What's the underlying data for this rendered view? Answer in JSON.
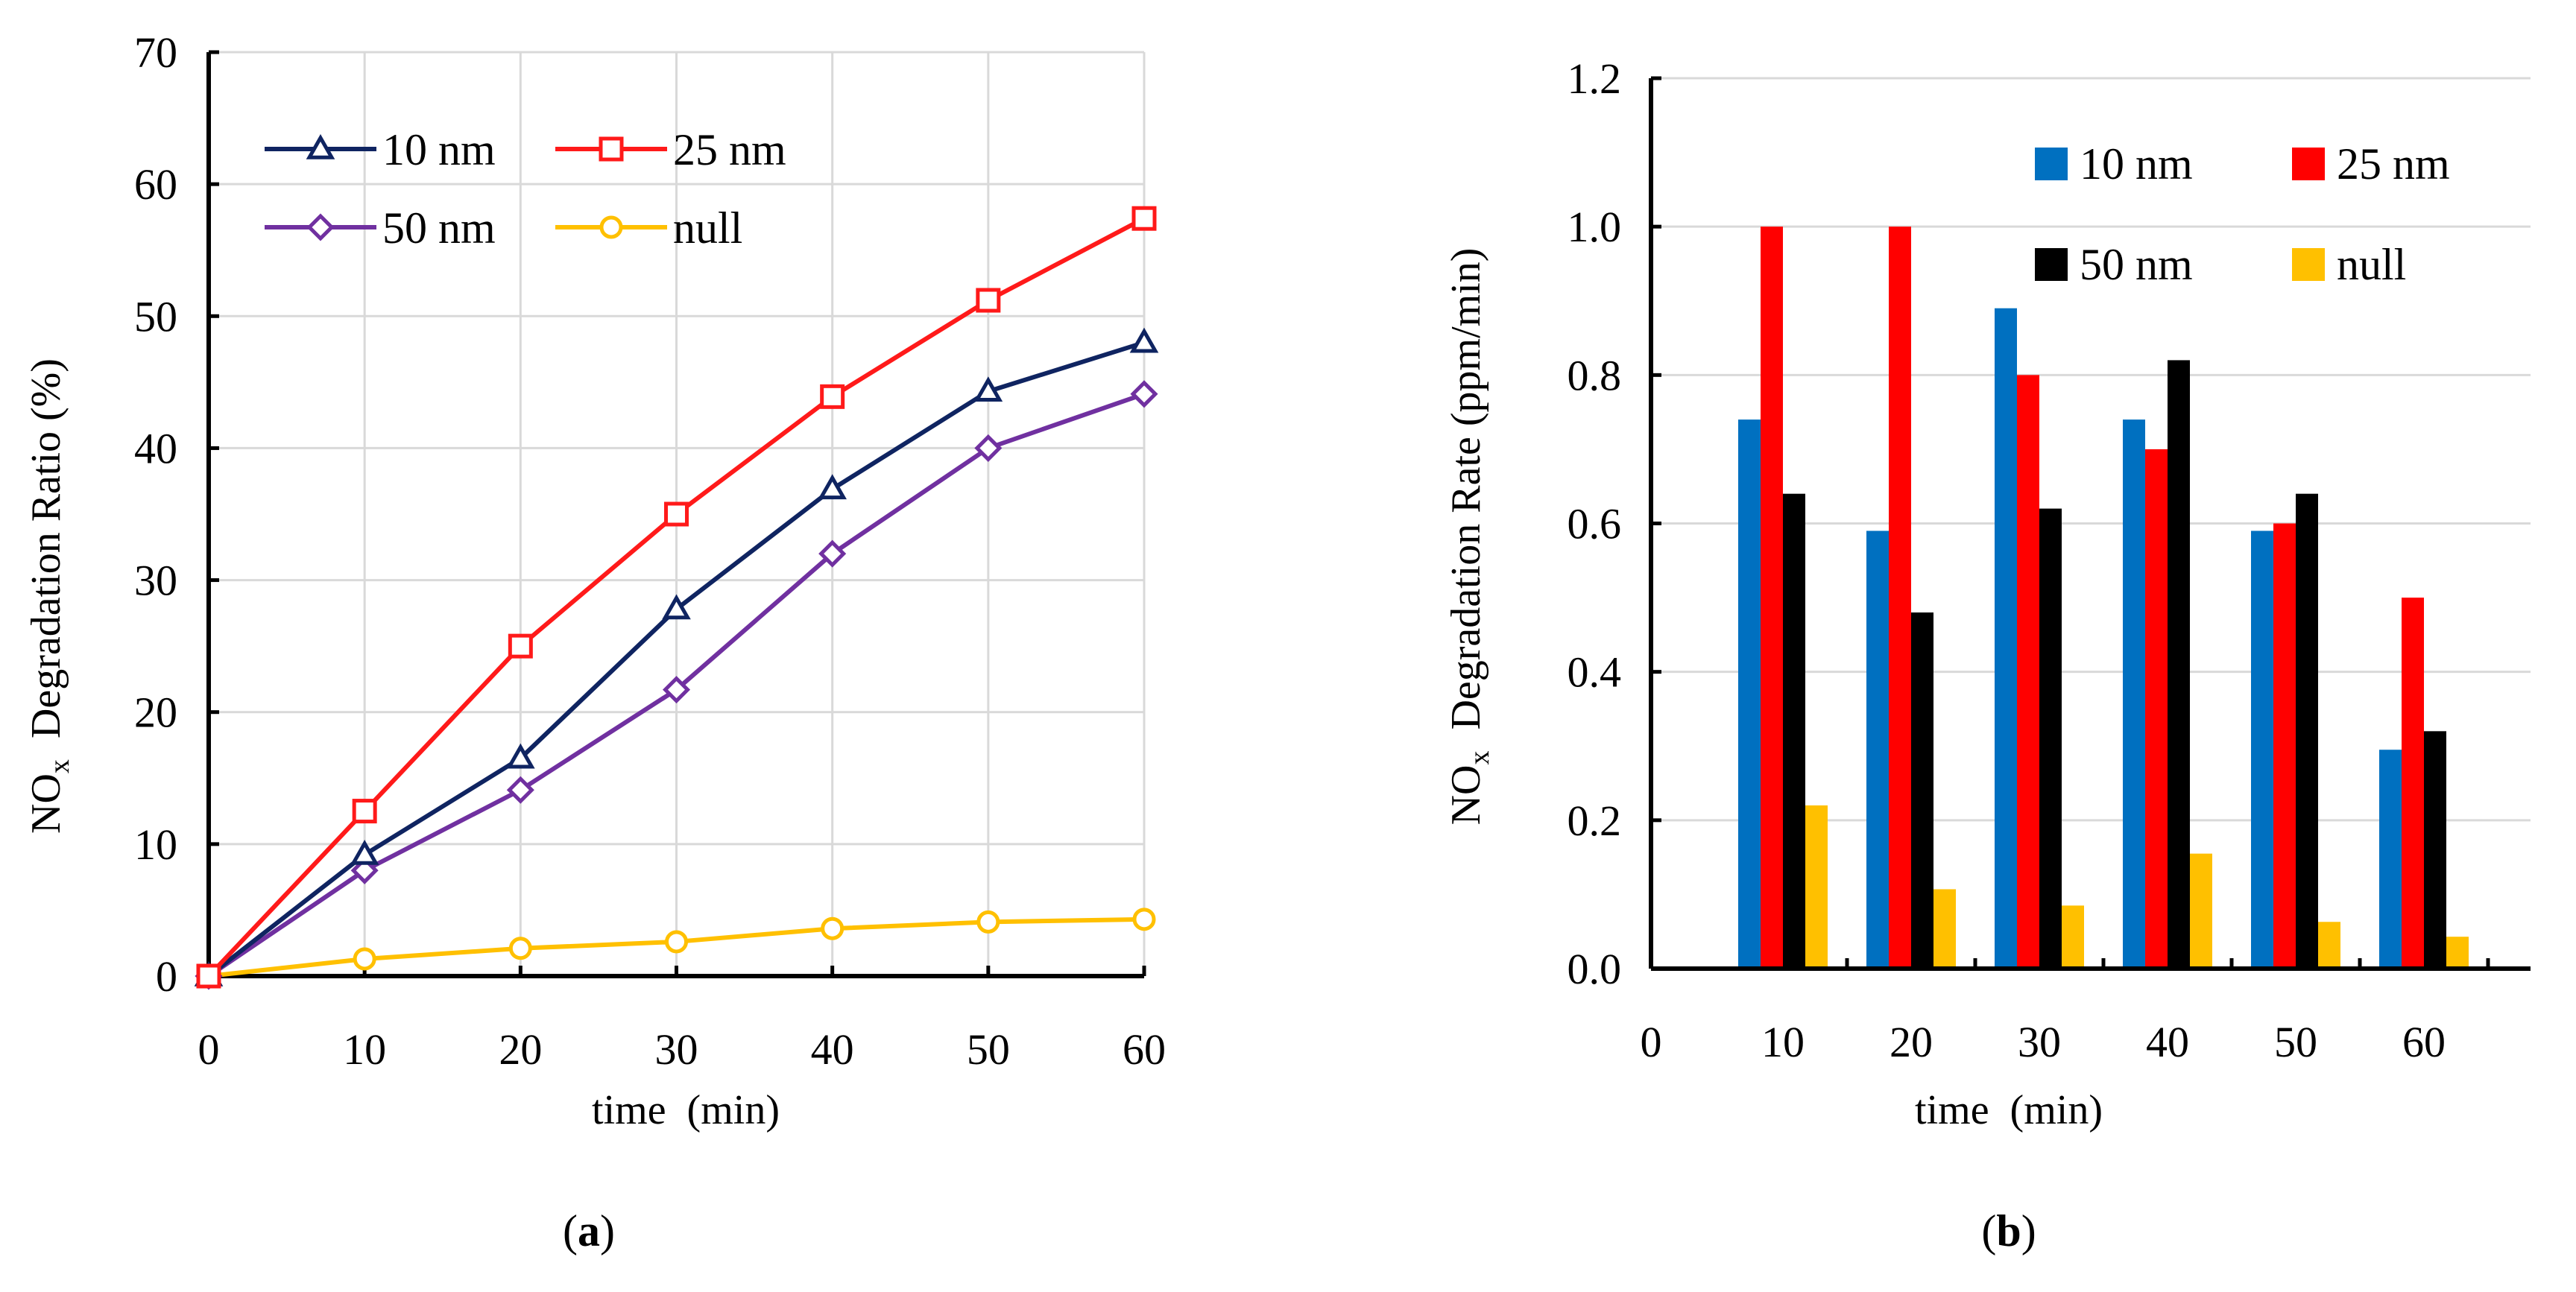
{
  "chart_data": [
    {
      "panel": "(a)",
      "panel_letter": "a",
      "type": "line",
      "xlabel": "time  (min)",
      "ylabel_prefix": "NO",
      "ylabel_sub": "x",
      "ylabel_suffix": "  Degradation Ratio (%)",
      "x": [
        0,
        10,
        20,
        30,
        40,
        50,
        60
      ],
      "xlim": [
        0,
        60
      ],
      "ylim": [
        0,
        70
      ],
      "xticks": [
        0,
        10,
        20,
        30,
        40,
        50,
        60
      ],
      "yticks": [
        0,
        10,
        20,
        30,
        40,
        50,
        60,
        70
      ],
      "grid": true,
      "legend_position": "top-left",
      "series": [
        {
          "name": "10 nm",
          "color": "#0f2461",
          "marker": "triangle",
          "values": [
            0,
            9.2,
            16.5,
            27.8,
            36.9,
            44.3,
            48.0
          ]
        },
        {
          "name": "25 nm",
          "color": "#ff1a1a",
          "marker": "square",
          "values": [
            0,
            12.5,
            25.0,
            35.0,
            43.9,
            51.2,
            57.4
          ]
        },
        {
          "name": "50 nm",
          "color": "#7030a0",
          "marker": "diamond",
          "values": [
            0,
            8.0,
            14.1,
            21.7,
            32.0,
            40.0,
            44.1
          ]
        },
        {
          "name": "null",
          "color": "#ffc000",
          "marker": "circle",
          "values": [
            0,
            1.3,
            2.1,
            2.6,
            3.6,
            4.1,
            4.3
          ]
        }
      ]
    },
    {
      "panel": "(b)",
      "panel_letter": "b",
      "type": "bar",
      "xlabel": "time  (min)",
      "ylabel_prefix": "NO",
      "ylabel_sub": "x",
      "ylabel_suffix": "  Degradation Rate (ppm/min)",
      "categories": [
        "10",
        "20",
        "30",
        "40",
        "50",
        "60"
      ],
      "x_origin_label": "0",
      "ylim": [
        0,
        1.2
      ],
      "yticks": [
        "0.0",
        "0.2",
        "0.4",
        "0.6",
        "0.8",
        "1.0",
        "1.2"
      ],
      "grid": true,
      "legend_position": "top-right",
      "series": [
        {
          "name": "10 nm",
          "color": "#0070c0",
          "values": [
            0.74,
            0.59,
            0.89,
            0.74,
            0.59,
            0.295
          ]
        },
        {
          "name": "25 nm",
          "color": "#ff0000",
          "values": [
            1.0,
            1.0,
            0.8,
            0.7,
            0.6,
            0.5
          ]
        },
        {
          "name": "50 nm",
          "color": "#000000",
          "values": [
            0.64,
            0.48,
            0.62,
            0.82,
            0.64,
            0.32
          ]
        },
        {
          "name": "null",
          "color": "#ffc000",
          "values": [
            0.22,
            0.107,
            0.085,
            0.155,
            0.063,
            0.043
          ]
        }
      ]
    }
  ]
}
